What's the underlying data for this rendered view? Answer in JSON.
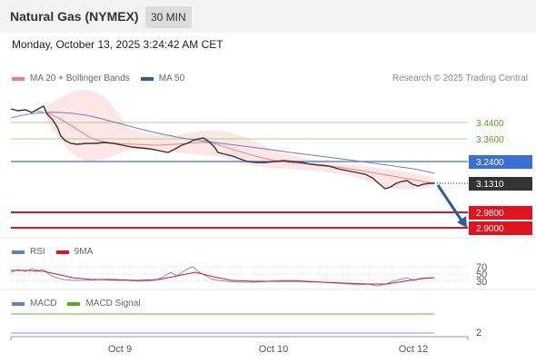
{
  "header": {
    "title": "Natural Gas (NYMEX)",
    "timeframe": "30 MIN"
  },
  "datetime": "Monday, October 13, 2025 3:24:42 AM CET",
  "legend_main": [
    {
      "label": "MA 20 + Bollinger Bands",
      "color": "#f08080"
    },
    {
      "label": "MA 50",
      "color": "#2e5aa8"
    }
  ],
  "copyright": "Research © 2025 Trading Central",
  "levels": [
    {
      "value": "3.4400",
      "type": "resistance-light",
      "color": "#9ccc7a"
    },
    {
      "value": "3.3600",
      "type": "resistance-light",
      "color": "#9ccc7a"
    },
    {
      "value": "3.2400",
      "type": "pivot",
      "color": "#3a6fd8"
    },
    {
      "value": "3.1310",
      "type": "last-price",
      "color": "#333333"
    },
    {
      "value": "2.9800",
      "type": "support",
      "color": "#e0141e"
    },
    {
      "value": "2.9000",
      "type": "support",
      "color": "#e0141e"
    }
  ],
  "rsi": {
    "legend": [
      {
        "label": "RSI",
        "color": "#5b7fd6"
      },
      {
        "label": "9MA",
        "color": "#e0141e"
      }
    ],
    "levels": [
      "70",
      "50",
      "30"
    ]
  },
  "macd": {
    "legend": [
      {
        "label": "MACD",
        "color": "#5b7fd6"
      },
      {
        "label": "MACD Signal",
        "color": "#4caf1e"
      }
    ],
    "axis_value": "2"
  },
  "x_axis": [
    "Oct 9",
    "Oct 10",
    "Oct 12"
  ],
  "chart_data": {
    "type": "line",
    "title": "Natural Gas (NYMEX)",
    "x": [
      "Oct 9",
      "Oct 10",
      "Oct 12"
    ],
    "series": [
      {
        "name": "MA 20 + Bollinger Bands"
      },
      {
        "name": "MA 50"
      },
      {
        "name": "RSI"
      },
      {
        "name": "9MA"
      },
      {
        "name": "MACD"
      },
      {
        "name": "MACD Signal"
      }
    ],
    "price_levels": [
      3.44,
      3.36,
      3.24,
      3.131,
      2.98,
      2.9
    ],
    "last_price": 3.131,
    "rsi_levels": [
      70,
      50,
      30
    ],
    "grid": false,
    "legend": "top-left"
  }
}
